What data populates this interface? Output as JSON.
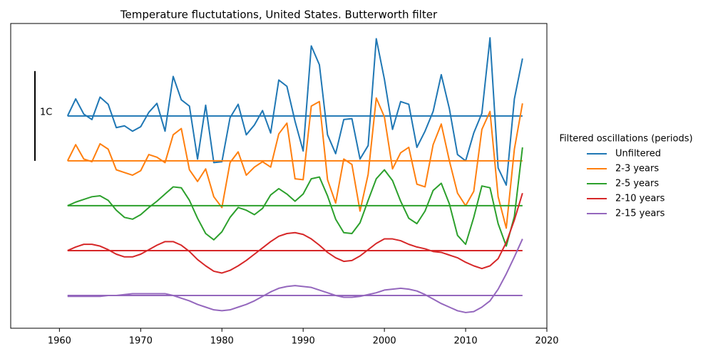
{
  "chart_data": {
    "type": "line",
    "title": "Temperature fluctutations, United States. Butterworth filter",
    "legend_title": "Filtered oscillations (periods)",
    "legend": "right-outside",
    "scale_bar": {
      "label": "1C",
      "value": 1
    },
    "x": [
      1961,
      1962,
      1963,
      1964,
      1965,
      1966,
      1967,
      1968,
      1969,
      1970,
      1971,
      1972,
      1973,
      1974,
      1975,
      1976,
      1977,
      1978,
      1979,
      1980,
      1981,
      1982,
      1983,
      1984,
      1985,
      1986,
      1987,
      1988,
      1989,
      1990,
      1991,
      1992,
      1993,
      1994,
      1995,
      1996,
      1997,
      1998,
      1999,
      2000,
      2001,
      2002,
      2003,
      2004,
      2005,
      2006,
      2007,
      2008,
      2009,
      2010,
      2011,
      2012,
      2013,
      2014,
      2015,
      2016,
      2017
    ],
    "xlim": [
      1954,
      2020
    ],
    "xticks": [
      1960,
      1970,
      1980,
      1990,
      2000,
      2010,
      2020
    ],
    "ylim": [
      -2.365,
      1.03
    ],
    "series": [
      {
        "name": "Unfiltered",
        "color": "#1f77b4",
        "offset": 0,
        "values": [
          0,
          0.19,
          0.02,
          -0.04,
          0.21,
          0.13,
          -0.13,
          -0.11,
          -0.17,
          -0.12,
          0.04,
          0.14,
          -0.17,
          0.44,
          0.18,
          0.11,
          -0.48,
          0.12,
          -0.52,
          -0.51,
          -0.02,
          0.13,
          -0.21,
          -0.1,
          0.06,
          -0.19,
          0.4,
          0.33,
          -0.06,
          -0.39,
          0.78,
          0.57,
          -0.21,
          -0.42,
          -0.04,
          -0.03,
          -0.48,
          -0.33,
          0.86,
          0.41,
          -0.15,
          0.16,
          0.13,
          -0.35,
          -0.17,
          0.05,
          0.46,
          0.08,
          -0.43,
          -0.5,
          -0.19,
          0.03,
          0.87,
          -0.58,
          -0.77,
          0.19,
          0.64
        ]
      },
      {
        "name": "2-3 years",
        "color": "#ff7f0e",
        "offset": -0.5,
        "values": [
          0,
          0.18,
          0.02,
          -0.01,
          0.19,
          0.13,
          -0.1,
          -0.13,
          -0.16,
          -0.11,
          0.07,
          0.04,
          -0.02,
          0.29,
          0.36,
          -0.1,
          -0.23,
          -0.09,
          -0.4,
          -0.52,
          -0.02,
          0.1,
          -0.16,
          -0.07,
          -0.01,
          -0.07,
          0.3,
          0.42,
          -0.2,
          -0.21,
          0.61,
          0.66,
          -0.21,
          -0.47,
          0.02,
          -0.04,
          -0.56,
          -0.15,
          0.7,
          0.49,
          -0.09,
          0.09,
          0.15,
          -0.26,
          -0.29,
          0.18,
          0.41,
          0,
          -0.36,
          -0.5,
          -0.34,
          0.35,
          0.55,
          -0.4,
          -0.75,
          0.13,
          0.64
        ]
      },
      {
        "name": "2-5 years",
        "color": "#2ca02c",
        "offset": -1.0,
        "values": [
          0,
          0.04,
          0.07,
          0.1,
          0.11,
          0.06,
          -0.05,
          -0.13,
          -0.15,
          -0.1,
          -0.02,
          0.05,
          0.13,
          0.21,
          0.2,
          0.06,
          -0.14,
          -0.31,
          -0.38,
          -0.29,
          -0.13,
          -0.02,
          -0.05,
          -0.1,
          -0.03,
          0.12,
          0.19,
          0.13,
          0.05,
          0.13,
          0.3,
          0.32,
          0.11,
          -0.15,
          -0.3,
          -0.31,
          -0.19,
          0.06,
          0.3,
          0.4,
          0.28,
          0.05,
          -0.14,
          -0.2,
          -0.06,
          0.17,
          0.25,
          0.02,
          -0.33,
          -0.43,
          -0.13,
          0.22,
          0.2,
          -0.2,
          -0.45,
          -0.12,
          0.65
        ]
      },
      {
        "name": "2-10 years",
        "color": "#d62728",
        "offset": -1.5,
        "values": [
          0,
          0.04,
          0.07,
          0.07,
          0.05,
          0.01,
          -0.04,
          -0.07,
          -0.07,
          -0.04,
          0.01,
          0.06,
          0.1,
          0.1,
          0.06,
          -0.01,
          -0.1,
          -0.17,
          -0.23,
          -0.25,
          -0.22,
          -0.17,
          -0.11,
          -0.04,
          0.03,
          0.1,
          0.16,
          0.19,
          0.2,
          0.18,
          0.13,
          0.06,
          -0.02,
          -0.08,
          -0.12,
          -0.11,
          -0.06,
          0.01,
          0.08,
          0.13,
          0.13,
          0.11,
          0.07,
          0.04,
          0.02,
          -0.01,
          -0.02,
          -0.05,
          -0.08,
          -0.13,
          -0.17,
          -0.2,
          -0.17,
          -0.09,
          0.09,
          0.34,
          0.64
        ]
      },
      {
        "name": "2-15 years",
        "color": "#9467bd",
        "offset": -2.0,
        "values": [
          -0.01,
          -0.01,
          -0.01,
          -0.01,
          -0.01,
          0,
          0,
          0.01,
          0.02,
          0.02,
          0.02,
          0.02,
          0.02,
          0,
          -0.03,
          -0.06,
          -0.1,
          -0.13,
          -0.16,
          -0.17,
          -0.16,
          -0.13,
          -0.1,
          -0.06,
          -0.01,
          0.04,
          0.08,
          0.1,
          0.11,
          0.1,
          0.09,
          0.06,
          0.03,
          0,
          -0.02,
          -0.02,
          -0.01,
          0.01,
          0.03,
          0.06,
          0.07,
          0.08,
          0.07,
          0.05,
          0.01,
          -0.04,
          -0.09,
          -0.13,
          -0.17,
          -0.19,
          -0.18,
          -0.13,
          -0.06,
          0.07,
          0.24,
          0.43,
          0.63
        ]
      }
    ]
  }
}
